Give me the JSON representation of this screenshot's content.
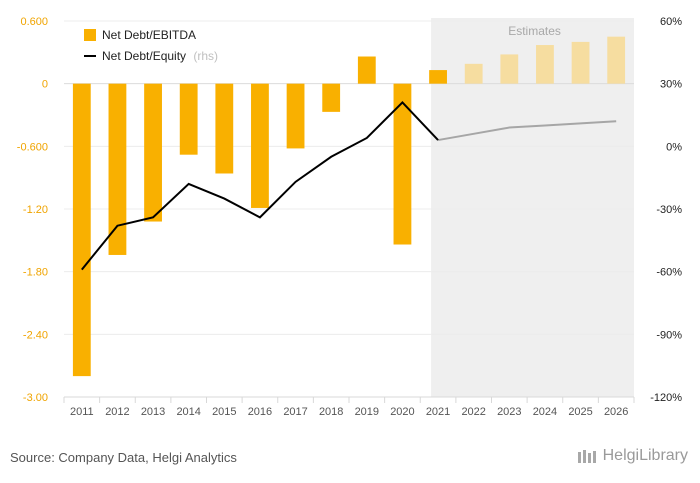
{
  "chart_data": {
    "type": "bar+line",
    "categories": [
      "2011",
      "2012",
      "2013",
      "2014",
      "2015",
      "2016",
      "2017",
      "2018",
      "2019",
      "2020",
      "2021",
      "2022",
      "2023",
      "2024",
      "2025",
      "2026"
    ],
    "estimate_start": "2022",
    "estimates_label": "Estimates",
    "series": [
      {
        "name": "Net Debt/EBITDA",
        "type": "bar",
        "axis": "left",
        "color": "#f9b000",
        "estimate_color": "#f6dda0",
        "values": [
          -2.8,
          -1.64,
          -1.32,
          -0.68,
          -0.86,
          -1.19,
          -0.62,
          -0.27,
          0.26,
          -1.54,
          0.13,
          0.19,
          0.28,
          0.37,
          0.4,
          0.45
        ]
      },
      {
        "name": "Net Debt/Equity",
        "name_suffix": "(rhs)",
        "type": "line",
        "axis": "right",
        "color": "#000000",
        "estimate_color": "#a6a6a6",
        "values": [
          -59,
          -38,
          -34,
          -18,
          -25,
          -34,
          -17,
          -5,
          4,
          21,
          3,
          6,
          9,
          10,
          11,
          12
        ]
      }
    ],
    "left_axis": {
      "min": -3.0,
      "max": 0.6,
      "ticks": [
        "0.600",
        "0",
        "-0.600",
        "-1.20",
        "-1.80",
        "-2.40",
        "-3.00"
      ],
      "tick_values": [
        0.6,
        0,
        -0.6,
        -1.2,
        -1.8,
        -2.4,
        -3.0
      ],
      "color": "#f0a400"
    },
    "right_axis": {
      "min": -120,
      "max": 60,
      "ticks": [
        "60%",
        "30%",
        "0%",
        "-30%",
        "-60%",
        "-90%",
        "-120%"
      ],
      "tick_values": [
        60,
        30,
        0,
        -30,
        -60,
        -90,
        -120
      ]
    },
    "grid": true,
    "legend": "top-left"
  },
  "footer": {
    "source": "Source: Company Data, Helgi Analytics",
    "brand": "HelgiLibrary"
  }
}
